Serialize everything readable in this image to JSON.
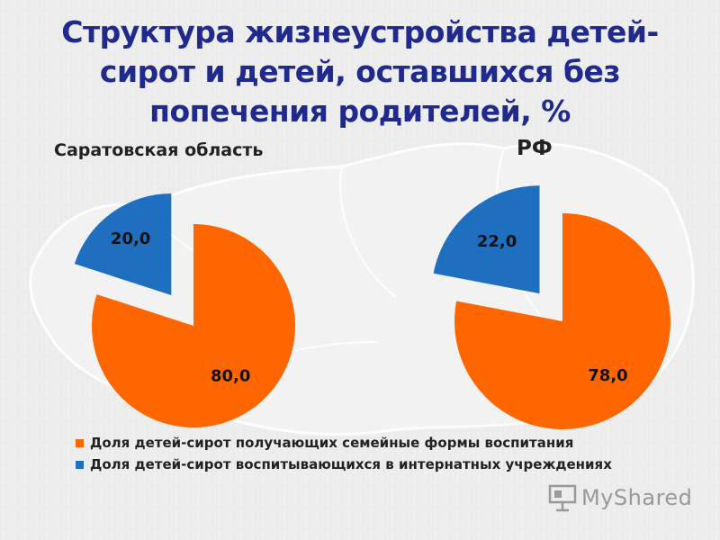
{
  "title_lines": [
    "Структура жизнеустройства детей-",
    "сирот и детей, оставшихся без",
    "попечения родителей, %"
  ],
  "colors": {
    "title": "#1f2a8c",
    "orange": "#ff6600",
    "blue": "#1f6fc0"
  },
  "chart_data": [
    {
      "type": "pie",
      "title": "Саратовская область",
      "series": [
        {
          "name": "Доля детей-сирот получающих семейные формы воспитания",
          "value": 80.0,
          "label": "80,0"
        },
        {
          "name": "Доля детей-сирот воспитывающихся в интернатных учреждениях",
          "value": 20.0,
          "label": "20,0"
        }
      ]
    },
    {
      "type": "pie",
      "title": "РФ",
      "series": [
        {
          "name": "Доля детей-сирот получающих семейные формы воспитания",
          "value": 78.0,
          "label": "78,0"
        },
        {
          "name": "Доля детей-сирот воспитывающихся в интернатных учреждениях",
          "value": 22.0,
          "label": "22,0"
        }
      ]
    }
  ],
  "legend": [
    {
      "label": "Доля детей-сирот получающих семейные формы воспитания",
      "color": "#ff6600"
    },
    {
      "label": "Доля детей-сирот воспитывающихся в интернатных учреждениях",
      "color": "#1f6fc0"
    }
  ],
  "watermark": {
    "text": "MyShared",
    "icon": "presentation-board-icon"
  }
}
